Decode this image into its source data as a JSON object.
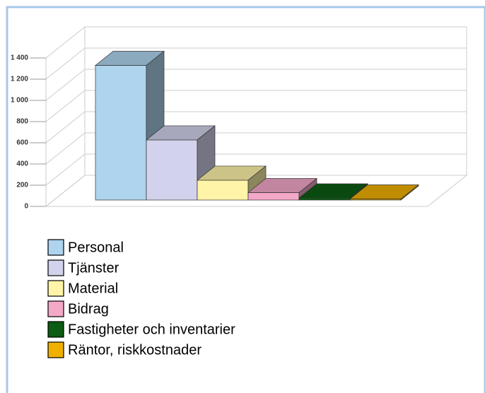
{
  "chart_data": {
    "type": "bar3d",
    "categories": [
      "Personal",
      "Tjänster",
      "Material",
      "Bidrag",
      "Fastigheter och inventarier",
      "Räntor, riskkostnader"
    ],
    "values": [
      1270,
      567,
      187,
      70,
      20,
      10
    ],
    "colors": [
      "#aed4ee",
      "#d2d2ec",
      "#fff4a8",
      "#f4a8c8",
      "#0c5c14",
      "#f0b000"
    ],
    "ylim": [
      0,
      1400
    ],
    "yticks": [
      0,
      200,
      400,
      600,
      800,
      {
        "value": 1000,
        "label": "1 000"
      },
      {
        "value": 1200,
        "label": "1 200"
      },
      {
        "value": 1400,
        "label": "1 400"
      }
    ],
    "grid": true
  }
}
